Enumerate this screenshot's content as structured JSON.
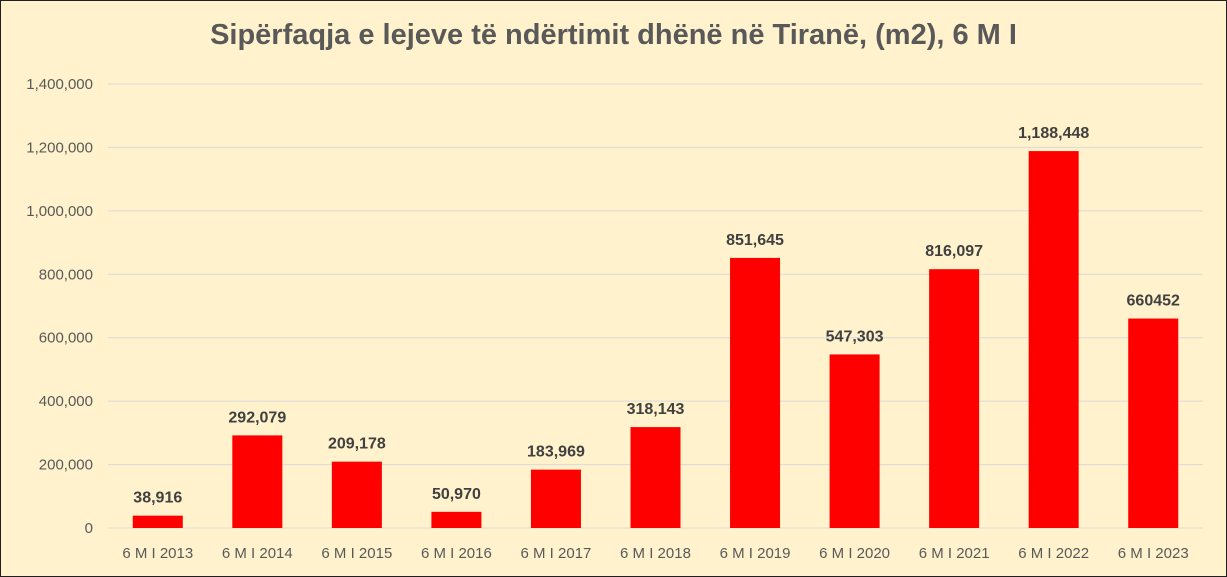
{
  "chart_data": {
    "type": "bar",
    "title": "Sipërfaqja e lejeve të ndërtimit dhënë në Tiranë, (m2), 6 M I",
    "xlabel": "",
    "ylabel": "",
    "categories": [
      "6 M I 2013",
      "6 M I 2014",
      "6 M I 2015",
      "6 M I 2016",
      "6 M I 2017",
      "6 M I 2018",
      "6 M I 2019",
      "6 M I 2020",
      "6 M I 2021",
      "6 M I 2022",
      "6 M I 2023"
    ],
    "values": [
      38916,
      292079,
      209178,
      50970,
      183969,
      318143,
      851645,
      547303,
      816097,
      1188448,
      660452
    ],
    "data_labels": [
      "38,916",
      "292,079",
      "209,178",
      "50,970",
      "183,969",
      "318,143",
      "851,645",
      "547,303",
      "816,097",
      "1,188,448",
      "660452"
    ],
    "ylim": [
      0,
      1400000
    ],
    "yticks": [
      0,
      200000,
      400000,
      600000,
      800000,
      1000000,
      1200000,
      1400000
    ],
    "ytick_labels": [
      "0",
      "200,000",
      "400,000",
      "600,000",
      "800,000",
      "1,000,000",
      "1,200,000",
      "1,400,000"
    ],
    "grid": true,
    "legend": "none",
    "colors": {
      "bar": "#ff0000",
      "background": "#fff2cc",
      "grid": "#d9d9d9",
      "text": "#595959",
      "label": "#404040"
    }
  }
}
